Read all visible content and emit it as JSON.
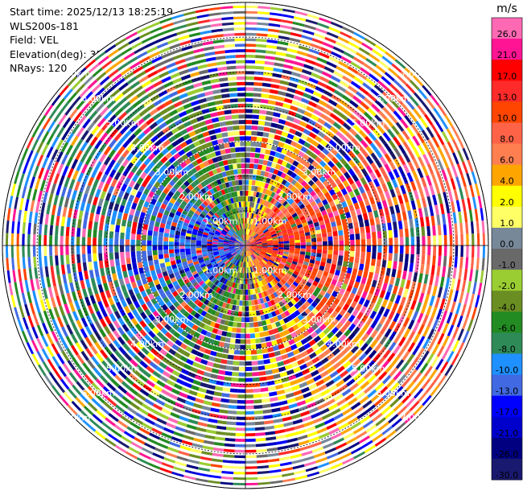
{
  "header": {
    "start_time": "Start time: 2025/12/13 18:25:19",
    "instrument": "WLS200s-181",
    "field": "Field: VEL",
    "elevation": "Elevation(deg): 35.00",
    "nrays": "NRays: 120"
  },
  "chart_data": {
    "type": "heatmap",
    "projection": "polar-ppi",
    "title": "",
    "field": "VEL",
    "unit": "m/s",
    "n_rays": 120,
    "elevation_deg": 35.0,
    "range_rings_km": [
      1.0,
      2.0,
      3.0,
      4.0,
      5.0,
      6.0,
      7.0
    ],
    "range_ring_labels": [
      "1.00km",
      "2.00km",
      "3.00km",
      "4.00km",
      "5.00km",
      "6.00km",
      "7.00km"
    ],
    "max_range_km": 7.0,
    "colorbar": {
      "unit": "m/s",
      "ticks": [
        "26.0",
        "21.0",
        "17.0",
        "13.0",
        "10.0",
        "8.0",
        "6.0",
        "4.0",
        "2.0",
        "1.0",
        "0.0",
        "-1.0",
        "-2.0",
        "-4.0",
        "-6.0",
        "-8.0",
        "-10.0",
        "-13.0",
        "-17.0",
        "-21.0",
        "-26.0",
        "-30.0"
      ],
      "bins": [
        {
          "min": 26.0,
          "max": 30.0,
          "color": "#ff69b4"
        },
        {
          "min": 21.0,
          "max": 26.0,
          "color": "#ff1493"
        },
        {
          "min": 17.0,
          "max": 21.0,
          "color": "#ff0000"
        },
        {
          "min": 13.0,
          "max": 17.0,
          "color": "#ff2a2a"
        },
        {
          "min": 10.0,
          "max": 13.0,
          "color": "#ff4500"
        },
        {
          "min": 8.0,
          "max": 10.0,
          "color": "#ff6347"
        },
        {
          "min": 6.0,
          "max": 8.0,
          "color": "#ff7f50"
        },
        {
          "min": 4.0,
          "max": 6.0,
          "color": "#ffa500"
        },
        {
          "min": 2.0,
          "max": 4.0,
          "color": "#ffff00"
        },
        {
          "min": 1.0,
          "max": 2.0,
          "color": "#ffff66"
        },
        {
          "min": 0.0,
          "max": 1.0,
          "color": "#778899"
        },
        {
          "min": -1.0,
          "max": 0.0,
          "color": "#696969"
        },
        {
          "min": -2.0,
          "max": -1.0,
          "color": "#9acd32"
        },
        {
          "min": -4.0,
          "max": -2.0,
          "color": "#6b8e23"
        },
        {
          "min": -6.0,
          "max": -4.0,
          "color": "#228b22"
        },
        {
          "min": -8.0,
          "max": -6.0,
          "color": "#2e8b57"
        },
        {
          "min": -10.0,
          "max": -8.0,
          "color": "#1e90ff"
        },
        {
          "min": -13.0,
          "max": -10.0,
          "color": "#4169e1"
        },
        {
          "min": -17.0,
          "max": -13.0,
          "color": "#0000ff"
        },
        {
          "min": -21.0,
          "max": -17.0,
          "color": "#0000cd"
        },
        {
          "min": -26.0,
          "max": -21.0,
          "color": "#000080"
        },
        {
          "min": -30.0,
          "max": -26.0,
          "color": "#191970"
        }
      ]
    }
  }
}
